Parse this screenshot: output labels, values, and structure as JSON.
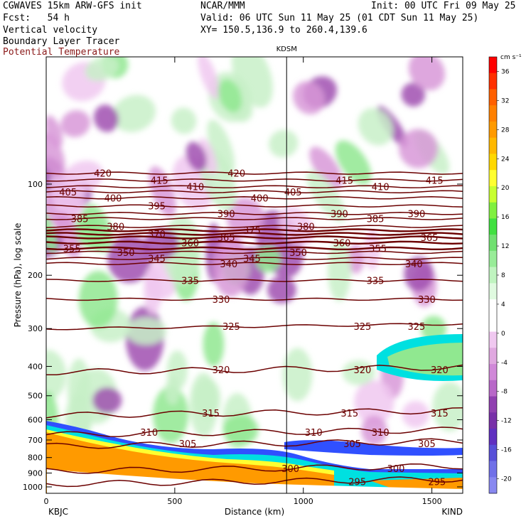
{
  "header": {
    "line1_left": "CGWAVES 15km ARW-GFS init",
    "line1_mid": "NCAR/MMM",
    "line1_right": "Init: 00 UTC Fri 09 May 25",
    "fcst": "Fcst:   54 h",
    "valid": "Valid: 06 UTC Sun 11 May 25 (01 CDT Sun 11 May 25)",
    "field1": "Vertical velocity",
    "xy": "XY= 150.5,136.9 to 260.4,139.6",
    "field2": "Boundary Layer Tracer",
    "field3": "Potential Temperature",
    "station_mid": "KDSM"
  },
  "colors": {
    "contour": "#6b0000",
    "positive_light": "#c8f0c8",
    "positive_mid": "#90e890",
    "negative_light": "#f0c8f0",
    "negative_mid": "#d898d8",
    "negative_dark": "#a050b0",
    "tracer_orange": "#ff9a00",
    "tracer_yellow": "#ffff30",
    "tracer_cyan": "#00e0e0",
    "tracer_blue": "#3050ff"
  },
  "chart_data": {
    "type": "heatmap",
    "xlabel": "Distance (km)",
    "ylabel": "Pressure (hPa), log scale",
    "xlim": [
      0,
      1620
    ],
    "ylim": [
      1050,
      38
    ],
    "x_ticks": [
      "0",
      "500",
      "1000",
      "1500"
    ],
    "x_tick_values": [
      0,
      500,
      1000,
      1500
    ],
    "x_end_labels": {
      "left": "KBJC",
      "right": "KIND"
    },
    "y_ticks": [
      "100",
      "200",
      "300",
      "400",
      "500",
      "600",
      "700",
      "800",
      "900",
      "1000"
    ],
    "y_tick_values": [
      100,
      200,
      300,
      400,
      500,
      600,
      700,
      800,
      900,
      1000
    ],
    "marker_line": {
      "x": 935,
      "label": "KDSM"
    },
    "colorbar": {
      "unit": "cm s⁻¹",
      "labels": [
        "36",
        "32",
        "28",
        "24",
        "20",
        "16",
        "12",
        "8",
        "4",
        "0",
        "-4",
        "-8",
        "-12",
        "-16",
        "-20"
      ],
      "values": [
        36,
        32,
        28,
        24,
        20,
        16,
        12,
        8,
        4,
        0,
        -4,
        -8,
        -12,
        -16,
        -20
      ],
      "colors": [
        "#ff0000",
        "#ff3000",
        "#ff6000",
        "#ff8000",
        "#ff9a00",
        "#ffb800",
        "#ffd800",
        "#ffff30",
        "#c8ff30",
        "#80f040",
        "#40e040",
        "#70e070",
        "#98ec98",
        "#c0f4c0",
        "#e0fae0",
        "#ffffff",
        "#ffffff",
        "#f0c8f0",
        "#e0a8e0",
        "#d088d8",
        "#b868c8",
        "#9040b0",
        "#7830a8",
        "#6030c0",
        "#5850d8",
        "#7070e8",
        "#8888f0"
      ]
    },
    "theta_contours": [
      {
        "value": 420,
        "p": 92,
        "labels": [
          {
            "text": "420",
            "x": 220
          },
          {
            "text": "420",
            "x": 740
          }
        ]
      },
      {
        "value": 415,
        "p": 97,
        "labels": [
          {
            "text": "415",
            "x": 440
          },
          {
            "text": "415",
            "x": 1160
          },
          {
            "text": "415",
            "x": 1510
          }
        ]
      },
      {
        "value": 410,
        "p": 102,
        "labels": [
          {
            "text": "410",
            "x": 580
          },
          {
            "text": "410",
            "x": 1300
          }
        ]
      },
      {
        "value": 405,
        "p": 106,
        "labels": [
          {
            "text": "405",
            "x": 85
          },
          {
            "text": "405",
            "x": 960
          }
        ]
      },
      {
        "value": 400,
        "p": 111,
        "labels": [
          {
            "text": "400",
            "x": 260
          },
          {
            "text": "400",
            "x": 830
          }
        ]
      },
      {
        "value": 395,
        "p": 118,
        "labels": [
          {
            "text": "395",
            "x": 430
          }
        ]
      },
      {
        "value": 390,
        "p": 125,
        "labels": [
          {
            "text": "390",
            "x": 700
          },
          {
            "text": "390",
            "x": 1140
          },
          {
            "text": "390",
            "x": 1440
          }
        ]
      },
      {
        "value": 385,
        "p": 130,
        "labels": [
          {
            "text": "385",
            "x": 130
          },
          {
            "text": "385",
            "x": 1280
          }
        ]
      },
      {
        "value": 380,
        "p": 138,
        "labels": [
          {
            "text": "380",
            "x": 270
          },
          {
            "text": "380",
            "x": 1010
          }
        ]
      },
      {
        "value": 375,
        "p": 142,
        "labels": [
          {
            "text": "375",
            "x": 800
          }
        ]
      },
      {
        "value": 370,
        "p": 146,
        "labels": [
          {
            "text": "370",
            "x": 430
          }
        ]
      },
      {
        "value": 365,
        "p": 150,
        "labels": [
          {
            "text": "365",
            "x": 700
          },
          {
            "text": "365",
            "x": 1490
          }
        ]
      },
      {
        "value": 360,
        "p": 156,
        "labels": [
          {
            "text": "360",
            "x": 560
          },
          {
            "text": "360",
            "x": 1150
          }
        ]
      },
      {
        "value": 355,
        "p": 163,
        "labels": [
          {
            "text": "355",
            "x": 100
          },
          {
            "text": "355",
            "x": 1290
          }
        ]
      },
      {
        "value": 350,
        "p": 168,
        "labels": [
          {
            "text": "350",
            "x": 310
          },
          {
            "text": "350",
            "x": 980
          }
        ]
      },
      {
        "value": 345,
        "p": 176,
        "labels": [
          {
            "text": "345",
            "x": 430
          },
          {
            "text": "345",
            "x": 800
          }
        ]
      },
      {
        "value": 340,
        "p": 183,
        "labels": [
          {
            "text": "340",
            "x": 710
          },
          {
            "text": "340",
            "x": 1430
          }
        ]
      },
      {
        "value": 335,
        "p": 208,
        "labels": [
          {
            "text": "335",
            "x": 560
          },
          {
            "text": "335",
            "x": 1280
          }
        ]
      },
      {
        "value": 330,
        "p": 240,
        "labels": [
          {
            "text": "330",
            "x": 680
          },
          {
            "text": "330",
            "x": 1480
          }
        ]
      },
      {
        "value": 325,
        "p": 295,
        "labels": [
          {
            "text": "325",
            "x": 720
          },
          {
            "text": "325",
            "x": 1230
          },
          {
            "text": "325",
            "x": 1440
          }
        ]
      },
      {
        "value": 320,
        "p": 410,
        "labels": [
          {
            "text": "320",
            "x": 680
          },
          {
            "text": "320",
            "x": 1230
          },
          {
            "text": "320",
            "x": 1530
          }
        ]
      },
      {
        "value": 315,
        "p": 570,
        "labels": [
          {
            "text": "315",
            "x": 640
          },
          {
            "text": "315",
            "x": 1180
          },
          {
            "text": "315",
            "x": 1530
          }
        ]
      },
      {
        "value": 310,
        "p": 660,
        "labels": [
          {
            "text": "310",
            "x": 400
          },
          {
            "text": "310",
            "x": 1040
          },
          {
            "text": "310",
            "x": 1300
          }
        ]
      },
      {
        "value": 305,
        "p": 720,
        "labels": [
          {
            "text": "305",
            "x": 550
          },
          {
            "text": "305",
            "x": 1190
          },
          {
            "text": "305",
            "x": 1480
          }
        ]
      },
      {
        "value": 300,
        "p": 870,
        "labels": [
          {
            "text": "300",
            "x": 950
          },
          {
            "text": "300",
            "x": 1360
          }
        ]
      },
      {
        "value": 295,
        "p": 960,
        "labels": [
          {
            "text": "295",
            "x": 1210
          },
          {
            "text": "295",
            "x": 1520
          }
        ]
      }
    ]
  }
}
